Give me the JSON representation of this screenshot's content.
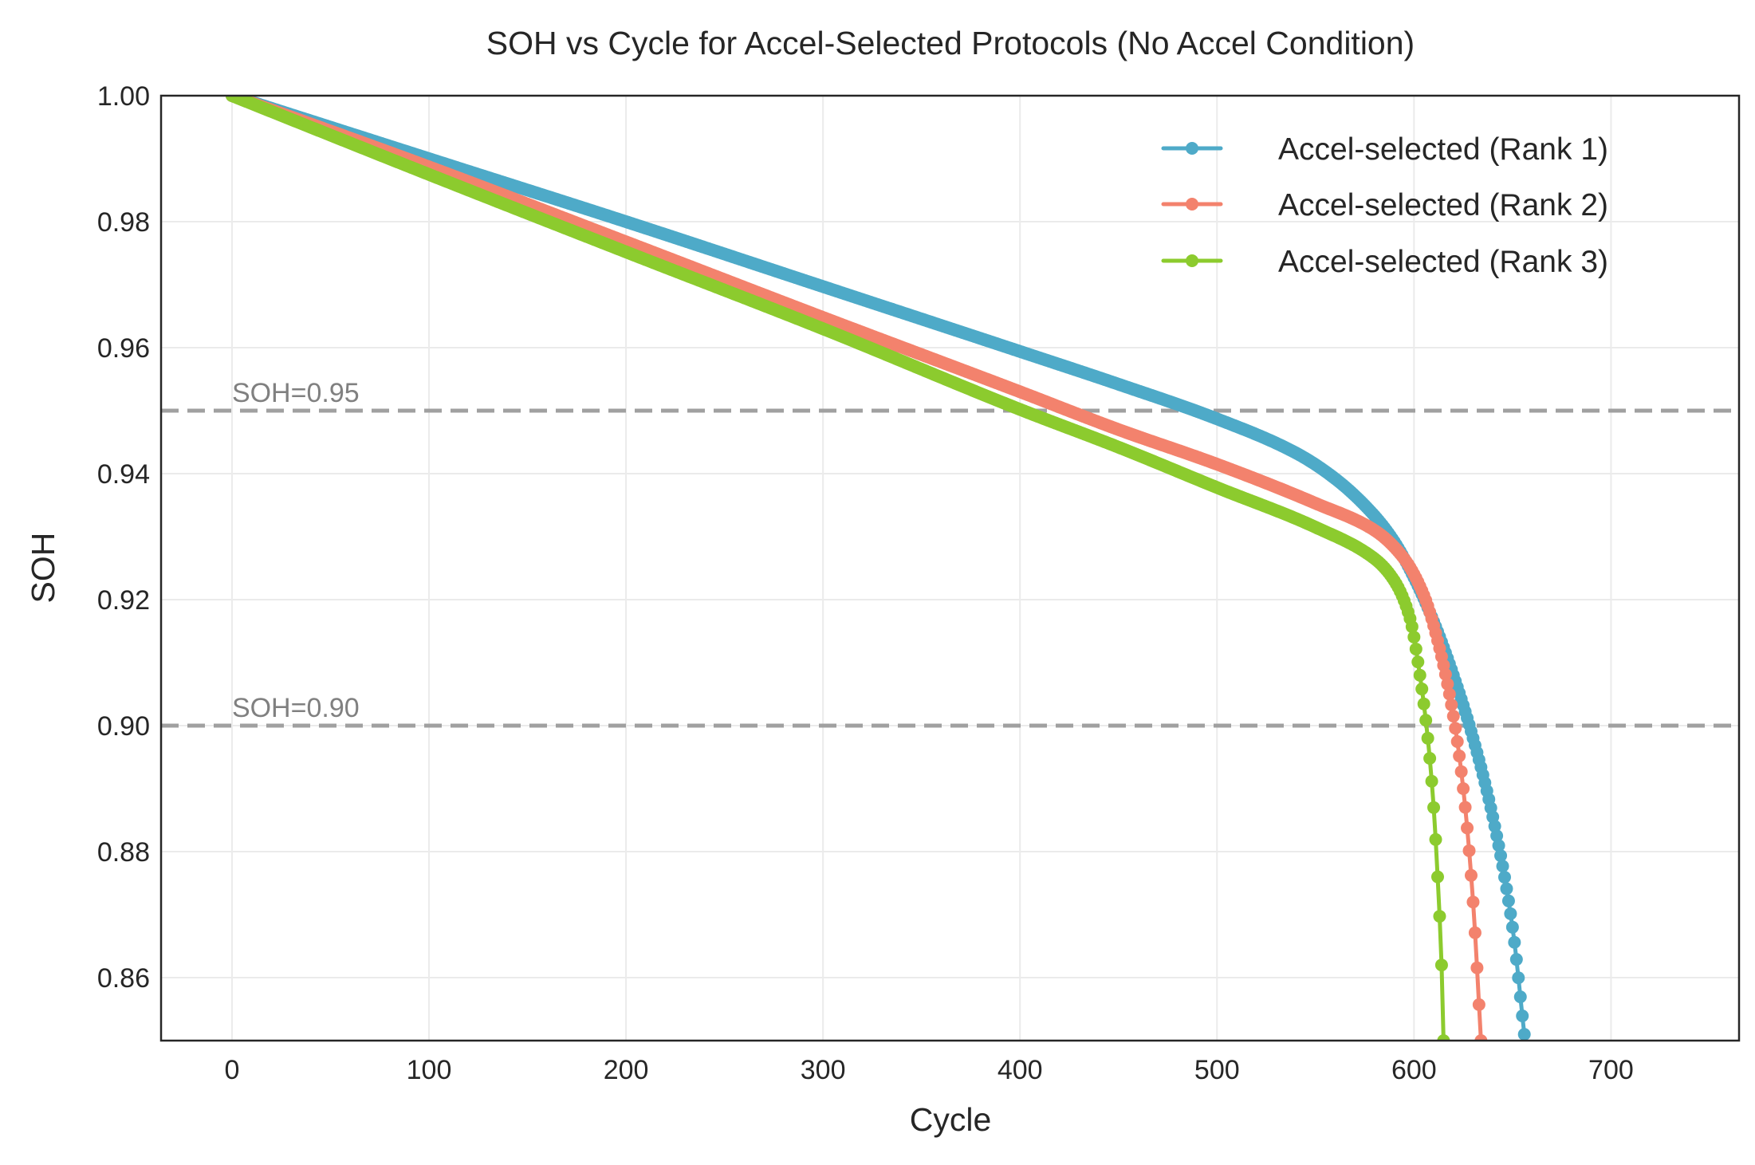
{
  "chart_data": {
    "type": "line",
    "title": "SOH vs Cycle for Accel-Selected Protocols (No Accel Condition)",
    "xlabel": "Cycle",
    "ylabel": "SOH",
    "xlim": [
      -36,
      765
    ],
    "ylim": [
      0.85,
      1.0
    ],
    "xticks": [
      0,
      100,
      200,
      300,
      400,
      500,
      600,
      700
    ],
    "yticks": [
      0.86,
      0.88,
      0.9,
      0.92,
      0.94,
      0.96,
      0.98,
      1.0
    ],
    "ytick_labels": [
      "0.86",
      "0.88",
      "0.90",
      "0.92",
      "0.94",
      "0.96",
      "0.98",
      "1.00"
    ],
    "grid": true,
    "legend_position": "top-right",
    "reference_lines": [
      {
        "y": 0.95,
        "label": "SOH=0.95",
        "color": "#a0a0a0"
      },
      {
        "y": 0.9,
        "label": "SOH=0.90",
        "color": "#a0a0a0"
      }
    ],
    "series": [
      {
        "name": "Accel-selected (Rank 1)",
        "color": "#4eaac8",
        "x": [
          0,
          100,
          200,
          300,
          400,
          450,
          500,
          540,
          560,
          580,
          590,
          600,
          610,
          620,
          630,
          640,
          650,
          656
        ],
        "y": [
          1.0,
          0.99,
          0.98,
          0.9697,
          0.9594,
          0.9542,
          0.9487,
          0.9433,
          0.9392,
          0.9333,
          0.9292,
          0.9235,
          0.9165,
          0.908,
          0.898,
          0.8855,
          0.868,
          0.851
        ]
      },
      {
        "name": "Accel-selected (Rank 2)",
        "color": "#f3826d",
        "x": [
          0,
          100,
          200,
          300,
          400,
          450,
          500,
          550,
          580,
          595,
          605,
          612,
          620,
          625,
          630,
          634
        ],
        "y": [
          1.0,
          0.9887,
          0.9768,
          0.9648,
          0.953,
          0.947,
          0.9415,
          0.9353,
          0.931,
          0.9265,
          0.9207,
          0.9135,
          0.9015,
          0.89,
          0.872,
          0.85
        ]
      },
      {
        "name": "Accel-selected (Rank 3)",
        "color": "#8ccb2e",
        "x": [
          0,
          100,
          200,
          300,
          400,
          450,
          500,
          550,
          580,
          590,
          598,
          603,
          607,
          610,
          612,
          614,
          615
        ],
        "y": [
          1.0,
          0.9875,
          0.9752,
          0.963,
          0.9502,
          0.9442,
          0.9378,
          0.9315,
          0.9265,
          0.923,
          0.917,
          0.908,
          0.898,
          0.887,
          0.876,
          0.862,
          0.85
        ]
      }
    ]
  }
}
